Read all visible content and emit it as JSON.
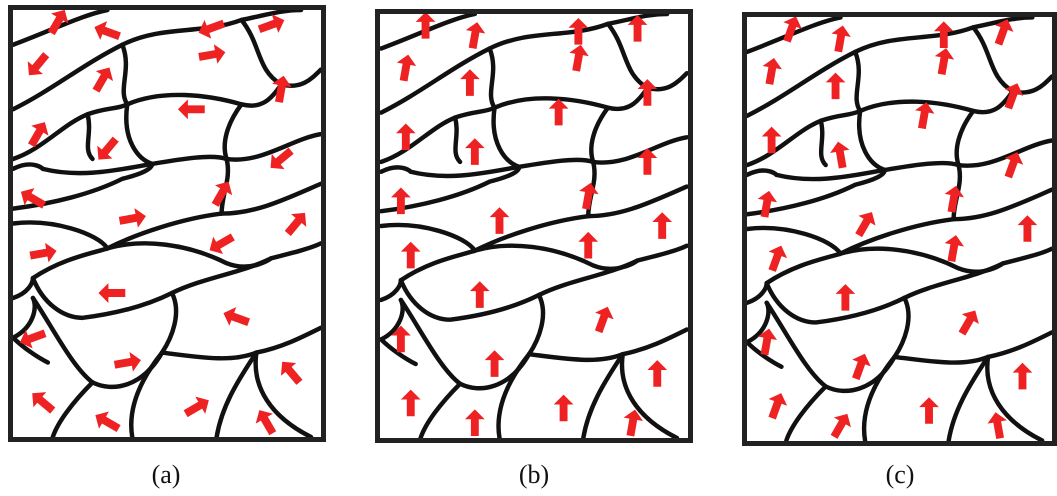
{
  "figure": {
    "panels": [
      {
        "id": "a",
        "label": "(a)",
        "state": "random"
      },
      {
        "id": "b",
        "label": "(b)",
        "state": "aligned-up"
      },
      {
        "id": "c",
        "label": "(c)",
        "state": "mostly-aligned-up"
      }
    ],
    "colors": {
      "border": "#222222",
      "boundary": "#111111",
      "arrow": "#ee2222"
    },
    "icon": "arrow-icon",
    "arrow_angles_deg": {
      "a": [
        -60,
        200,
        160,
        -20,
        130,
        -60,
        180,
        -80,
        -60,
        130,
        -10,
        140,
        210,
        -10,
        -60,
        -50,
        -10,
        180,
        150,
        -160,
        160,
        -10,
        230,
        -140,
        -150,
        -30,
        -120
      ],
      "b": [
        -90,
        -80,
        -90,
        -90,
        -80,
        -90,
        -90,
        -90,
        -90,
        -90,
        -80,
        -90,
        -90,
        -90,
        -80,
        -90,
        -90,
        -90,
        -90,
        -70,
        -90,
        -90,
        -90,
        -90,
        -90,
        -90,
        -80
      ],
      "c": [
        -70,
        -80,
        -90,
        -70,
        -80,
        -90,
        -80,
        -70,
        -90,
        -100,
        -80,
        -70,
        -80,
        -60,
        -80,
        -90,
        -70,
        -90,
        -80,
        -60,
        -80,
        -70,
        -90,
        -70,
        -60,
        -90,
        -100
      ]
    }
  }
}
